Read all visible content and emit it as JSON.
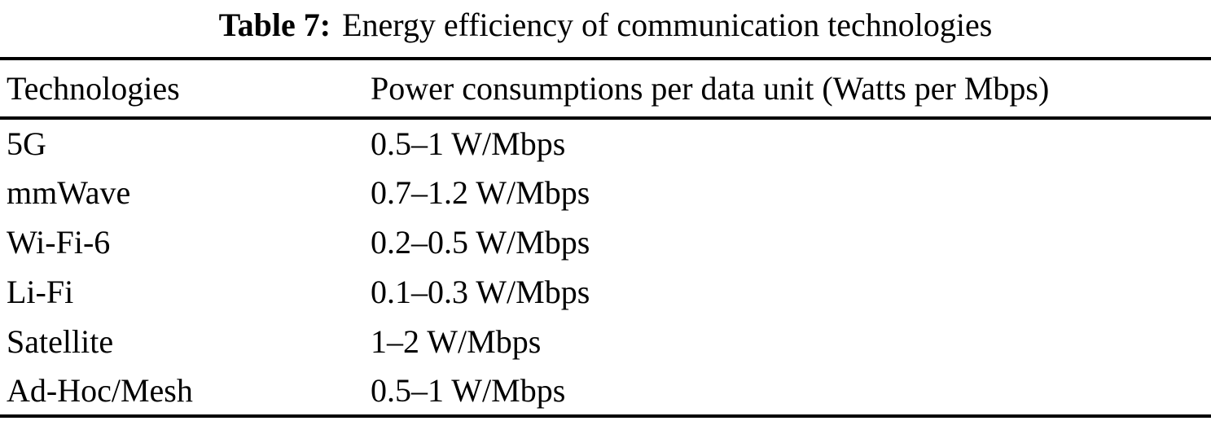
{
  "table": {
    "caption": {
      "label": "Table 7:",
      "text": "Energy efficiency of communication technologies"
    },
    "columns": [
      "Technologies",
      "Power consumptions per data unit (Watts per Mbps)"
    ],
    "rows": [
      {
        "technology": "5G",
        "power": "0.5–1 W/Mbps"
      },
      {
        "technology": "mmWave",
        "power": "0.7–1.2 W/Mbps"
      },
      {
        "technology": "Wi-Fi-6",
        "power": "0.2–0.5 W/Mbps"
      },
      {
        "technology": "Li-Fi",
        "power": "0.1–0.3 W/Mbps"
      },
      {
        "technology": "Satellite",
        "power": "1–2 W/Mbps"
      },
      {
        "technology": "Ad-Hoc/Mesh",
        "power": "0.5–1 W/Mbps"
      }
    ],
    "colors": {
      "text": "#000000",
      "background": "#ffffff",
      "rule": "#000000"
    }
  }
}
